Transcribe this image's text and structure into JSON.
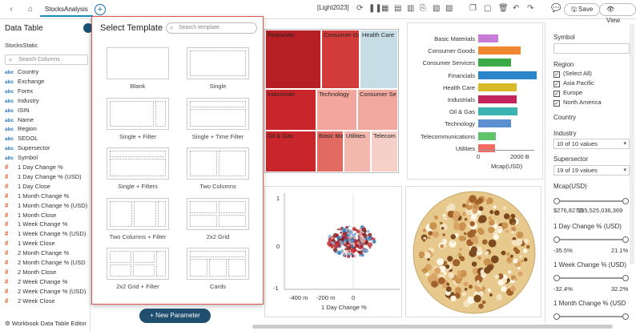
{
  "topbar": {
    "tab_label": "StocksAnalysis",
    "theme": "[Light2023]",
    "save_label": "Save",
    "view_label": "View"
  },
  "left_panel": {
    "title": "Data Table",
    "datasource": "StocksStatic",
    "search_placeholder": "Search Columns",
    "columns": [
      {
        "type": "abc",
        "name": "Country"
      },
      {
        "type": "abc",
        "name": "Exchange"
      },
      {
        "type": "abc",
        "name": "Forex"
      },
      {
        "type": "abc",
        "name": "Industry"
      },
      {
        "type": "abc",
        "name": "ISIN"
      },
      {
        "type": "abc",
        "name": "Name"
      },
      {
        "type": "abc",
        "name": "Region"
      },
      {
        "type": "abc",
        "name": "SEDOL"
      },
      {
        "type": "abc",
        "name": "Supersector"
      },
      {
        "type": "abc",
        "name": "Symbol"
      },
      {
        "type": "#",
        "name": "1 Day Change %"
      },
      {
        "type": "#",
        "name": "1 Day Change % (USD)"
      },
      {
        "type": "#",
        "name": "1 Day Close"
      },
      {
        "type": "#",
        "name": "1 Month Change %"
      },
      {
        "type": "#",
        "name": "1 Month Change % (USD)"
      },
      {
        "type": "#",
        "name": "1 Month Close"
      },
      {
        "type": "#",
        "name": "1 Week Change %"
      },
      {
        "type": "#",
        "name": "1 Week Change % (USD)"
      },
      {
        "type": "#",
        "name": "1 Week Close"
      },
      {
        "type": "#",
        "name": "2 Month Change %"
      },
      {
        "type": "#",
        "name": "2 Month Change % (USD"
      },
      {
        "type": "#",
        "name": "2 Month Close"
      },
      {
        "type": "#",
        "name": "2 Week Change %"
      },
      {
        "type": "#",
        "name": "2 Week Change % (USD)"
      },
      {
        "type": "#",
        "name": "2 Week Close"
      }
    ],
    "footer": "Workbook Data Table Editor"
  },
  "template_dialog": {
    "title": "Select Template",
    "search_placeholder": "Search template",
    "templates": [
      "Blank",
      "Single",
      "Single + Filter",
      "Single + Time Filter",
      "Single + Filters",
      "Two Columns",
      "Two Columns + Filter",
      "2x2 Grid",
      "2x2 Grid + Filter",
      "Cards"
    ]
  },
  "new_parameter_label": "+ New Parameter",
  "treemap": {
    "cells": [
      "Financials",
      "Consumer Go",
      "Health Care",
      "Industrials",
      "Technology",
      "Consumer Se",
      "Oil & Gas",
      "Basic Mat",
      "Utilities",
      "Telecom"
    ]
  },
  "bar_chart": {
    "categories": [
      "Basic Materials",
      "Consumer Goods",
      "Consumer Services",
      "Financials",
      "Health Care",
      "Industrials",
      "Oil & Gas",
      "Technology",
      "Telecommunications",
      "Utilities"
    ],
    "values": [
      0.9,
      1.9,
      1.45,
      2.6,
      1.7,
      1.7,
      1.75,
      1.45,
      0.8,
      0.75
    ],
    "colors": [
      "#c77dd6",
      "#f0872e",
      "#3daa48",
      "#2b86c9",
      "#d8b92a",
      "#c2245b",
      "#3bb3b0",
      "#5b8fd1",
      "#5fc46a",
      "#f26b63"
    ],
    "ticks": [
      "0",
      "2000 B"
    ],
    "xlabel": "Mcap(USD)"
  },
  "scatter": {
    "yticks": [
      "1",
      "0",
      "-1"
    ],
    "xticks": [
      "-400 m",
      "-200 m",
      "0"
    ],
    "xlabel": "1 Day Change %"
  },
  "filters": {
    "symbol_label": "Symbol",
    "region_label": "Region",
    "region_options": [
      "(Select All)",
      "Asia Pacific",
      "Europe",
      "North America"
    ],
    "country_label": "Country",
    "industry_label": "Industry",
    "industry_value": "10 of 10 values",
    "supersector_label": "Supersector",
    "supersector_value": "19 of 19 values",
    "mcap_label": "Mcap(USD)",
    "mcap_min": "$276,827,5",
    "mcap_max": "$35,525,036,369",
    "day_label": "1 Day Change % (USD)",
    "day_min": "-35.5%",
    "day_max": "21.1%",
    "week_label": "1 Week Change % (USD)",
    "week_min": "-32.4%",
    "week_max": "32.2%",
    "month_label": "1 Month Change % (USD"
  }
}
